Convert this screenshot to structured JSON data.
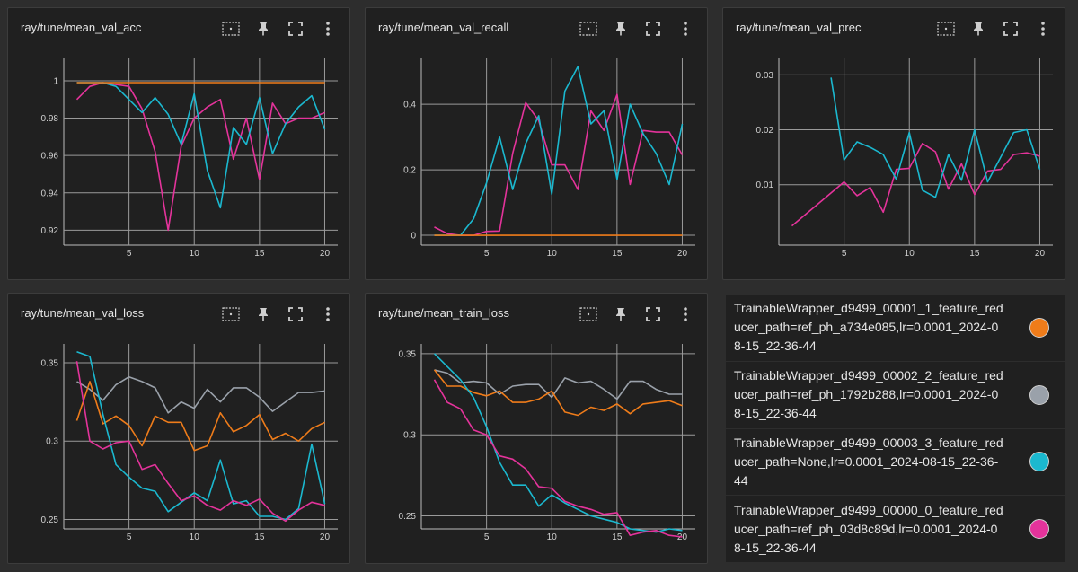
{
  "colors": {
    "orange": "#ef7c1a",
    "gray": "#9aa1aa",
    "cyan": "#1bb8cf",
    "magenta": "#e4339b",
    "grid": "#9a9a9a",
    "axis": "#bdbdbd",
    "tick_text": "#d0d0d0",
    "icon": "#cfcfcf"
  },
  "toolbar_icons": [
    "fit-domain-icon",
    "pin-icon",
    "fullscreen-icon",
    "more-vert-icon"
  ],
  "legend": [
    {
      "label": "TrainableWrapper_d9499_00001_1_feature_reducer_path=ref_ph_a734e085,lr=0.0001_2024-08-15_22-36-44",
      "color": "#ef7c1a"
    },
    {
      "label": "TrainableWrapper_d9499_00002_2_feature_reducer_path=ref_ph_1792b288,lr=0.0001_2024-08-15_22-36-44",
      "color": "#9aa1aa"
    },
    {
      "label": "TrainableWrapper_d9499_00003_3_feature_reducer_path=None,lr=0.0001_2024-08-15_22-36-44",
      "color": "#1bb8cf"
    },
    {
      "label": "TrainableWrapper_d9499_00000_0_feature_reducer_path=ref_ph_03d8c89d,lr=0.0001_2024-08-15_22-36-44",
      "color": "#e4339b"
    }
  ],
  "chart_data": [
    {
      "type": "line",
      "title": "ray/tune/mean_val_acc",
      "xlim": [
        0,
        21
      ],
      "ylim": [
        0.912,
        1.012
      ],
      "xticks": [
        5,
        10,
        15,
        20
      ],
      "yticks": [
        0.92,
        0.94,
        0.96,
        0.98,
        1
      ],
      "ytick_labels": [
        "0.92",
        "0.94",
        "0.96",
        "0.98",
        "1"
      ],
      "grid": true,
      "series": [
        {
          "color": "#e4339b",
          "x": [
            1,
            2,
            3,
            4,
            5,
            6,
            7,
            8,
            9,
            10,
            11,
            12,
            13,
            14,
            15,
            16,
            17,
            18,
            19,
            20
          ],
          "y": [
            0.99,
            0.997,
            0.999,
            0.998,
            0.997,
            0.985,
            0.962,
            0.92,
            0.965,
            0.98,
            0.986,
            0.99,
            0.958,
            0.98,
            0.947,
            0.988,
            0.977,
            0.98,
            0.98,
            0.983
          ]
        },
        {
          "color": "#1bb8cf",
          "x": [
            1,
            2,
            3,
            4,
            5,
            6,
            7,
            8,
            9,
            10,
            11,
            12,
            13,
            14,
            15,
            16,
            17,
            18,
            19,
            20
          ],
          "y": [
            0.999,
            0.999,
            0.999,
            0.997,
            0.99,
            0.983,
            0.991,
            0.982,
            0.966,
            0.993,
            0.952,
            0.932,
            0.975,
            0.966,
            0.991,
            0.961,
            0.977,
            0.986,
            0.992,
            0.974
          ]
        },
        {
          "color": "#ef7c1a",
          "x": [
            1,
            2,
            3,
            4,
            5,
            6,
            7,
            8,
            9,
            10,
            11,
            12,
            13,
            14,
            15,
            16,
            17,
            18,
            19,
            20
          ],
          "y": [
            0.999,
            0.999,
            0.999,
            0.999,
            0.999,
            0.999,
            0.999,
            0.999,
            0.999,
            0.999,
            0.999,
            0.999,
            0.999,
            0.999,
            0.999,
            0.999,
            0.999,
            0.999,
            0.999,
            0.999
          ]
        }
      ]
    },
    {
      "type": "line",
      "title": "ray/tune/mean_val_recall",
      "xlim": [
        0,
        21
      ],
      "ylim": [
        -0.03,
        0.54
      ],
      "xticks": [
        5,
        10,
        15,
        20
      ],
      "yticks": [
        0,
        0.2,
        0.4
      ],
      "ytick_labels": [
        "0",
        "0.2",
        "0.4"
      ],
      "grid": true,
      "series": [
        {
          "color": "#e4339b",
          "x": [
            1,
            2,
            3,
            4,
            5,
            6,
            7,
            8,
            9,
            10,
            11,
            12,
            13,
            14,
            15,
            16,
            17,
            18,
            19,
            20
          ],
          "y": [
            0.025,
            0.005,
            0.0,
            0.0,
            0.012,
            0.013,
            0.25,
            0.405,
            0.35,
            0.215,
            0.215,
            0.14,
            0.38,
            0.32,
            0.43,
            0.155,
            0.32,
            0.315,
            0.315,
            0.245
          ]
        },
        {
          "color": "#1bb8cf",
          "x": [
            1,
            2,
            3,
            4,
            5,
            6,
            7,
            8,
            9,
            10,
            11,
            12,
            13,
            14,
            15,
            16,
            17,
            18,
            19,
            20
          ],
          "y": [
            0.0,
            0.0,
            0.0,
            0.05,
            0.16,
            0.3,
            0.14,
            0.28,
            0.365,
            0.125,
            0.44,
            0.515,
            0.34,
            0.38,
            0.17,
            0.4,
            0.31,
            0.25,
            0.155,
            0.34
          ]
        },
        {
          "color": "#ef7c1a",
          "x": [
            1,
            2,
            3,
            4,
            5,
            6,
            7,
            8,
            9,
            10,
            11,
            12,
            13,
            14,
            15,
            16,
            17,
            18,
            19,
            20
          ],
          "y": [
            0,
            0,
            0,
            0,
            0,
            0,
            0,
            0,
            0,
            0,
            0,
            0,
            0,
            0,
            0,
            0,
            0,
            0,
            0,
            0
          ]
        }
      ]
    },
    {
      "type": "line",
      "title": "ray/tune/mean_val_prec",
      "xlim": [
        0,
        21
      ],
      "ylim": [
        -0.001,
        0.033
      ],
      "xticks": [
        5,
        10,
        15,
        20
      ],
      "yticks": [
        0.01,
        0.02,
        0.03
      ],
      "ytick_labels": [
        "0.01",
        "0.02",
        "0.03"
      ],
      "grid": true,
      "series": [
        {
          "color": "#e4339b",
          "x": [
            1,
            2,
            3,
            4,
            5,
            6,
            7,
            8,
            9,
            10,
            11,
            12,
            13,
            14,
            15,
            16,
            17,
            18,
            19,
            20
          ],
          "y": [
            0.0025,
            0.0045,
            0.0065,
            0.0085,
            0.0105,
            0.008,
            0.0095,
            0.005,
            0.0128,
            0.013,
            0.0175,
            0.016,
            0.0092,
            0.0138,
            0.0082,
            0.0125,
            0.0128,
            0.0155,
            0.0158,
            0.0152
          ]
        },
        {
          "color": "#1bb8cf",
          "x": [
            4,
            5,
            6,
            7,
            8,
            9,
            10,
            11,
            12,
            13,
            14,
            15,
            16,
            17,
            18,
            19,
            20
          ],
          "y": [
            0.0295,
            0.0145,
            0.0178,
            0.0168,
            0.0155,
            0.011,
            0.0195,
            0.009,
            0.0077,
            0.0155,
            0.0108,
            0.02,
            0.0105,
            0.015,
            0.0195,
            0.02,
            0.0128
          ]
        }
      ]
    },
    {
      "type": "line",
      "title": "ray/tune/mean_val_loss",
      "xlim": [
        0,
        21
      ],
      "ylim": [
        0.244,
        0.362
      ],
      "xticks": [
        5,
        10,
        15,
        20
      ],
      "yticks": [
        0.25,
        0.3,
        0.35
      ],
      "ytick_labels": [
        "0.25",
        "0.3",
        "0.35"
      ],
      "grid": true,
      "series": [
        {
          "color": "#9aa1aa",
          "x": [
            1,
            2,
            3,
            4,
            5,
            6,
            7,
            8,
            9,
            10,
            11,
            12,
            13,
            14,
            15,
            16,
            17,
            18,
            19,
            20
          ],
          "y": [
            0.338,
            0.333,
            0.326,
            0.336,
            0.341,
            0.338,
            0.334,
            0.318,
            0.325,
            0.321,
            0.333,
            0.325,
            0.334,
            0.334,
            0.328,
            0.319,
            0.325,
            0.331,
            0.331,
            0.332
          ]
        },
        {
          "color": "#ef7c1a",
          "x": [
            1,
            2,
            3,
            4,
            5,
            6,
            7,
            8,
            9,
            10,
            11,
            12,
            13,
            14,
            15,
            16,
            17,
            18,
            19,
            20
          ],
          "y": [
            0.313,
            0.338,
            0.311,
            0.316,
            0.31,
            0.297,
            0.316,
            0.312,
            0.312,
            0.294,
            0.297,
            0.318,
            0.306,
            0.31,
            0.317,
            0.301,
            0.305,
            0.3,
            0.308,
            0.312
          ]
        },
        {
          "color": "#1bb8cf",
          "x": [
            1,
            2,
            3,
            4,
            5,
            6,
            7,
            8,
            9,
            10,
            11,
            12,
            13,
            14,
            15,
            16,
            17,
            18,
            19,
            20
          ],
          "y": [
            0.357,
            0.354,
            0.317,
            0.285,
            0.277,
            0.27,
            0.268,
            0.255,
            0.261,
            0.267,
            0.262,
            0.288,
            0.26,
            0.262,
            0.252,
            0.252,
            0.25,
            0.257,
            0.298,
            0.26
          ]
        },
        {
          "color": "#e4339b",
          "x": [
            1,
            2,
            3,
            4,
            5,
            6,
            7,
            8,
            9,
            10,
            11,
            12,
            13,
            14,
            15,
            16,
            17,
            18,
            19,
            20
          ],
          "y": [
            0.351,
            0.3,
            0.295,
            0.299,
            0.3,
            0.282,
            0.285,
            0.273,
            0.262,
            0.265,
            0.259,
            0.256,
            0.262,
            0.259,
            0.263,
            0.254,
            0.249,
            0.256,
            0.261,
            0.259
          ]
        }
      ]
    },
    {
      "type": "line",
      "title": "ray/tune/mean_train_loss",
      "xlim": [
        0,
        21
      ],
      "ylim": [
        0.242,
        0.356
      ],
      "xticks": [
        5,
        10,
        15,
        20
      ],
      "yticks": [
        0.25,
        0.3,
        0.35
      ],
      "ytick_labels": [
        "0.25",
        "0.3",
        "0.35"
      ],
      "grid": true,
      "series": [
        {
          "color": "#9aa1aa",
          "x": [
            1,
            2,
            3,
            4,
            5,
            6,
            7,
            8,
            9,
            10,
            11,
            12,
            13,
            14,
            15,
            16,
            17,
            18,
            19,
            20
          ],
          "y": [
            0.34,
            0.338,
            0.332,
            0.333,
            0.332,
            0.325,
            0.33,
            0.331,
            0.331,
            0.323,
            0.335,
            0.332,
            0.333,
            0.328,
            0.322,
            0.333,
            0.333,
            0.328,
            0.325,
            0.325
          ]
        },
        {
          "color": "#ef7c1a",
          "x": [
            1,
            2,
            3,
            4,
            5,
            6,
            7,
            8,
            9,
            10,
            11,
            12,
            13,
            14,
            15,
            16,
            17,
            18,
            19,
            20
          ],
          "y": [
            0.34,
            0.33,
            0.33,
            0.326,
            0.324,
            0.327,
            0.32,
            0.32,
            0.322,
            0.327,
            0.314,
            0.312,
            0.317,
            0.315,
            0.319,
            0.313,
            0.319,
            0.32,
            0.321,
            0.318
          ]
        },
        {
          "color": "#1bb8cf",
          "x": [
            1,
            2,
            3,
            4,
            5,
            6,
            7,
            8,
            9,
            10,
            11,
            12,
            13,
            14,
            15,
            16,
            17,
            18,
            19,
            20
          ],
          "y": [
            0.35,
            0.342,
            0.334,
            0.323,
            0.305,
            0.283,
            0.269,
            0.269,
            0.256,
            0.263,
            0.258,
            0.254,
            0.25,
            0.248,
            0.246,
            0.242,
            0.241,
            0.24,
            0.242,
            0.241
          ]
        },
        {
          "color": "#e4339b",
          "x": [
            1,
            2,
            3,
            4,
            5,
            6,
            7,
            8,
            9,
            10,
            11,
            12,
            13,
            14,
            15,
            16,
            17,
            18,
            19,
            20
          ],
          "y": [
            0.334,
            0.32,
            0.316,
            0.303,
            0.3,
            0.287,
            0.285,
            0.279,
            0.268,
            0.267,
            0.259,
            0.256,
            0.254,
            0.251,
            0.252,
            0.238,
            0.24,
            0.241,
            0.238,
            0.237
          ]
        }
      ]
    }
  ]
}
